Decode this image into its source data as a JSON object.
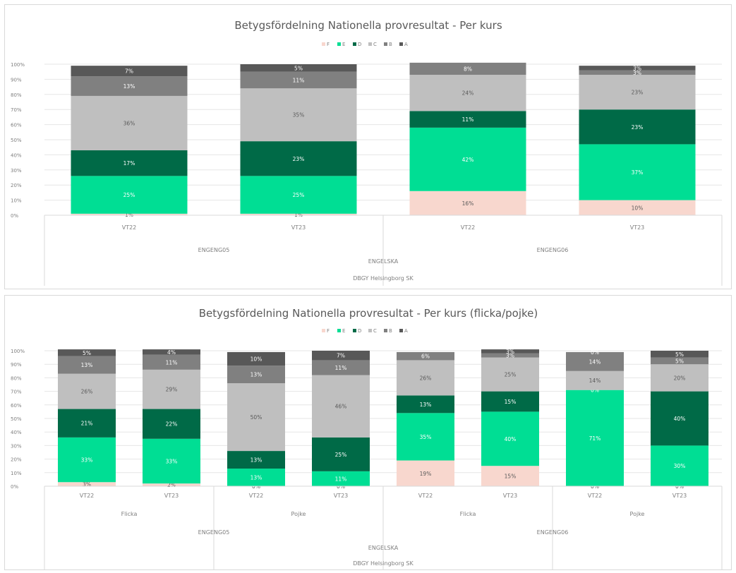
{
  "colors": {
    "F": "#f8d7ce",
    "E": "#00de94",
    "D": "#006a47",
    "C": "#bfbfbf",
    "B": "#808080",
    "A": "#585858"
  },
  "chart_data": [
    {
      "type": "bar",
      "stacked": true,
      "title": "Betygsfördelning Nationella provresultat - Per kurs",
      "legend": [
        "F",
        "E",
        "D",
        "C",
        "B",
        "A"
      ],
      "legend_position": "top",
      "ylim": [
        0,
        100
      ],
      "yticks": [
        "0%",
        "10%",
        "20%",
        "30%",
        "40%",
        "50%",
        "60%",
        "70%",
        "80%",
        "90%",
        "100%"
      ],
      "categories": [
        "VT22",
        "VT23",
        "VT22",
        "VT23"
      ],
      "group_levels": [
        [
          {
            "label": "ENGENG05",
            "span": 2
          },
          {
            "label": "ENGENG06",
            "span": 2
          }
        ],
        [
          {
            "label": "ENGELSKA",
            "span": 4
          }
        ],
        [
          {
            "label": "DBGY Helsingborg SK",
            "span": 4
          }
        ]
      ],
      "series": [
        {
          "name": "F",
          "values": [
            1,
            1,
            16,
            10
          ],
          "labels": [
            "1%",
            "1%",
            "16%",
            "10%"
          ]
        },
        {
          "name": "E",
          "values": [
            25,
            25,
            42,
            37
          ],
          "labels": [
            "25%",
            "25%",
            "42%",
            "37%"
          ]
        },
        {
          "name": "D",
          "values": [
            17,
            23,
            11,
            23
          ],
          "labels": [
            "17%",
            "23%",
            "11%",
            "23%"
          ]
        },
        {
          "name": "C",
          "values": [
            36,
            35,
            24,
            23
          ],
          "labels": [
            "36%",
            "35%",
            "24%",
            "23%"
          ]
        },
        {
          "name": "B",
          "values": [
            13,
            11,
            8,
            3
          ],
          "labels": [
            "13%",
            "11%",
            "8%",
            "3%"
          ]
        },
        {
          "name": "A",
          "values": [
            7,
            5,
            0,
            3
          ],
          "labels": [
            "7%",
            "5%",
            "",
            "3%"
          ]
        }
      ]
    },
    {
      "type": "bar",
      "stacked": true,
      "title": "Betygsfördelning Nationella provresultat - Per kurs (flicka/pojke)",
      "legend": [
        "F",
        "E",
        "D",
        "C",
        "B",
        "A"
      ],
      "legend_position": "top",
      "ylim": [
        0,
        100
      ],
      "yticks": [
        "0%",
        "10%",
        "20%",
        "30%",
        "40%",
        "50%",
        "60%",
        "70%",
        "80%",
        "90%",
        "100%"
      ],
      "categories": [
        "VT22",
        "VT23",
        "VT22",
        "VT23",
        "VT22",
        "VT23",
        "VT22",
        "VT23"
      ],
      "group_levels": [
        [
          {
            "label": "Flicka",
            "span": 2
          },
          {
            "label": "Pojke",
            "span": 2
          },
          {
            "label": "Flicka",
            "span": 2
          },
          {
            "label": "Pojke",
            "span": 2
          }
        ],
        [
          {
            "label": "ENGENG05",
            "span": 4
          },
          {
            "label": "ENGENG06",
            "span": 4
          }
        ],
        [
          {
            "label": "ENGELSKA",
            "span": 8
          }
        ],
        [
          {
            "label": "DBGY Helsingborg SK",
            "span": 8
          }
        ]
      ],
      "series": [
        {
          "name": "F",
          "values": [
            3,
            2,
            0,
            0,
            19,
            15,
            0,
            0
          ],
          "labels": [
            "3%",
            "2%",
            "0%",
            "0%",
            "19%",
            "15%",
            "0%",
            "0%"
          ]
        },
        {
          "name": "E",
          "values": [
            33,
            33,
            13,
            11,
            35,
            40,
            71,
            30
          ],
          "labels": [
            "33%",
            "33%",
            "13%",
            "11%",
            "35%",
            "40%",
            "71%",
            "30%"
          ]
        },
        {
          "name": "D",
          "values": [
            21,
            22,
            13,
            25,
            13,
            15,
            0,
            40
          ],
          "labels": [
            "21%",
            "22%",
            "13%",
            "25%",
            "13%",
            "15%",
            "0%",
            "40%"
          ]
        },
        {
          "name": "C",
          "values": [
            26,
            29,
            50,
            46,
            26,
            25,
            14,
            20
          ],
          "labels": [
            "26%",
            "29%",
            "50%",
            "46%",
            "26%",
            "25%",
            "14%",
            "20%"
          ]
        },
        {
          "name": "B",
          "values": [
            13,
            11,
            13,
            11,
            6,
            3,
            14,
            5
          ],
          "labels": [
            "13%",
            "11%",
            "13%",
            "11%",
            "6%",
            "3%",
            "14%",
            "5%"
          ]
        },
        {
          "name": "A",
          "values": [
            5,
            4,
            10,
            7,
            0,
            3,
            0,
            5
          ],
          "labels": [
            "5%",
            "4%",
            "10%",
            "7%",
            "",
            "3%",
            "0%",
            "5%"
          ]
        }
      ]
    }
  ]
}
